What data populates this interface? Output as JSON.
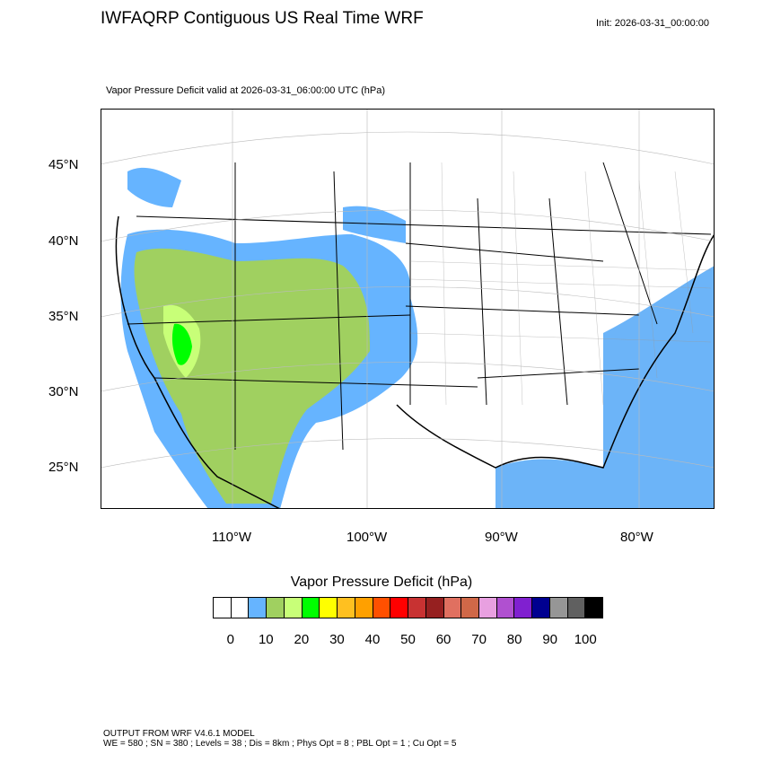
{
  "header": {
    "title": "IWFAQRP Contiguous US Real Time WRF",
    "init": "Init: 2026-03-31_00:00:00",
    "subtitle": "Vapor Pressure Deficit valid at 2026-03-31_06:00:00 UTC   (hPa)"
  },
  "map": {
    "projection": "Lambert Conformal (CONUS)",
    "lat_labels": [
      "45°N",
      "40°N",
      "35°N",
      "30°N",
      "25°N"
    ],
    "lon_labels": [
      "110°W",
      "100°W",
      "90°W",
      "80°W"
    ],
    "colors": {
      "water": "#ffffff",
      "ocean_shade": "#6cb4f8",
      "border": "#000000"
    }
  },
  "legend": {
    "title": "Vapor Pressure Deficit  (hPa)",
    "colors": [
      "#ffffff",
      "#ffffff",
      "#66b4ff",
      "#a0d060",
      "#c8ff78",
      "#00ff00",
      "#ffff00",
      "#ffc020",
      "#ffa000",
      "#ff5000",
      "#ff0000",
      "#c83232",
      "#962020",
      "#e07060",
      "#d06848",
      "#e8a0e0",
      "#b050d0",
      "#8020d0",
      "#000090",
      "#969696",
      "#606060",
      "#000000"
    ],
    "labels": [
      "0",
      "10",
      "20",
      "30",
      "40",
      "50",
      "60",
      "70",
      "80",
      "90",
      "100"
    ]
  },
  "footer": {
    "line1": "OUTPUT FROM WRF V4.6.1 MODEL",
    "line2": "WE = 580 ; SN = 380 ; Levels = 38 ; Dis = 8km ; Phys Opt = 8 ; PBL Opt = 1 ; Cu Opt = 5"
  }
}
